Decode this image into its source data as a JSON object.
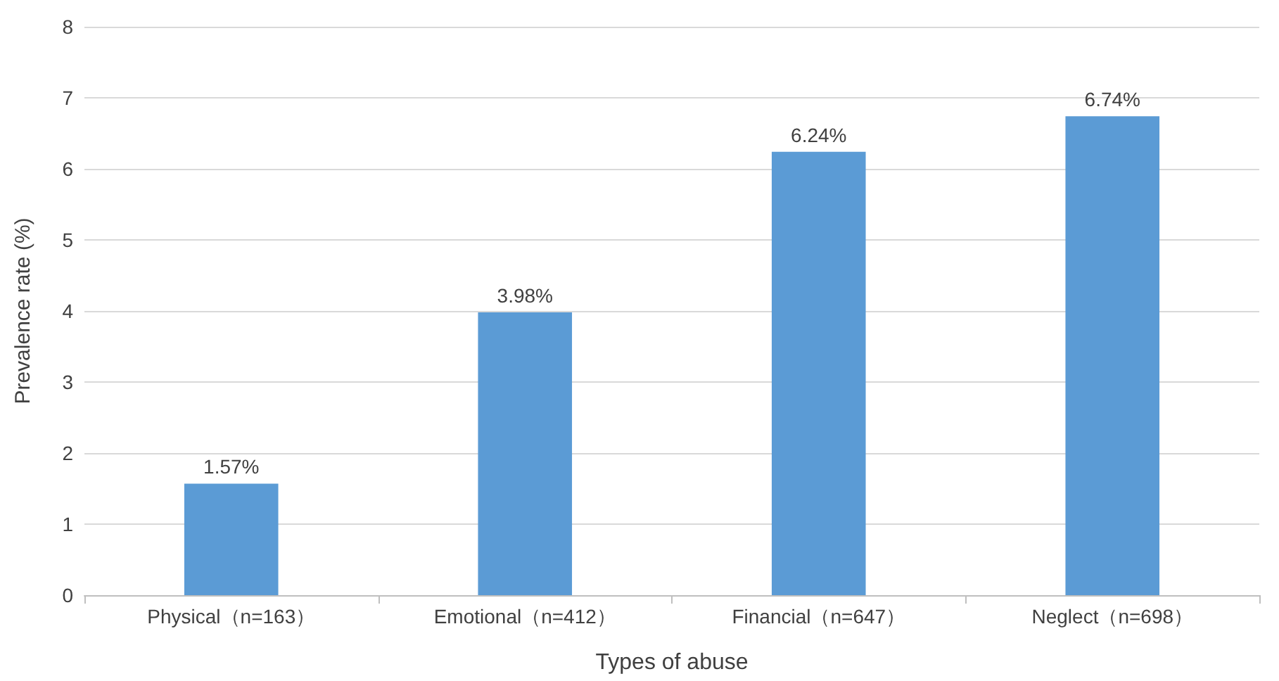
{
  "chart_data": {
    "type": "bar",
    "xlabel": "Types of abuse",
    "ylabel": "Prevalence rate (%)",
    "categories": [
      "Physical（n=163）",
      "Emotional（n=412）",
      "Financial（n=647）",
      "Neglect（n=698）"
    ],
    "values": [
      1.57,
      3.98,
      6.24,
      6.74
    ],
    "value_labels": [
      "1.57%",
      "3.98%",
      "6.24%",
      "6.74%"
    ],
    "color": "#5b9bd5",
    "ylim": [
      0,
      8
    ],
    "yticks": [
      0,
      1,
      2,
      3,
      4,
      5,
      6,
      7,
      8
    ],
    "grid": "y"
  }
}
